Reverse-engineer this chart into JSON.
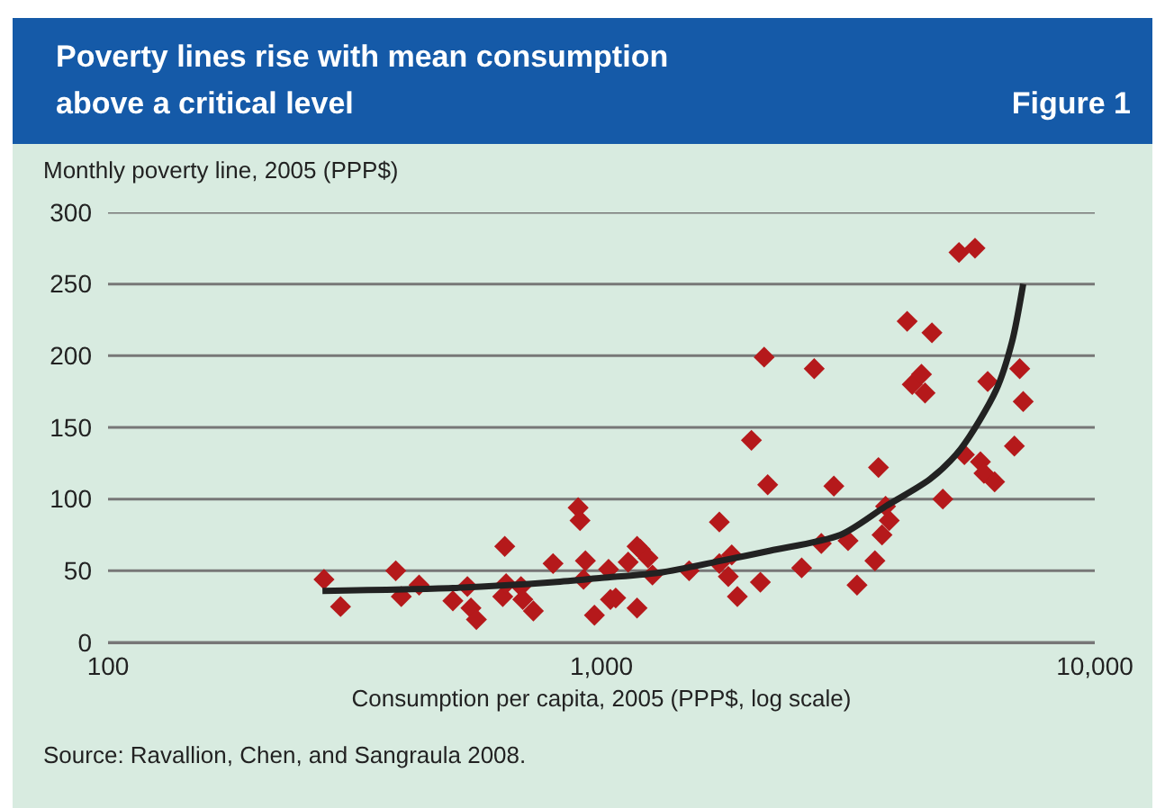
{
  "chart_data": {
    "type": "scatter",
    "title": "Poverty lines rise with mean consumption above a critical level",
    "subtitle": "Figure 1",
    "ylabel": "Monthly poverty line, 2005 (PPP$)",
    "xlabel": "Consumption per capita, 2005 (PPP$, log scale)",
    "annotations": [
      "Source: Ravallion, Chen, and Sangraula 2008."
    ],
    "log": "x",
    "xlim": [
      100,
      10000
    ],
    "xticks": [
      {
        "value": 100,
        "label": "100"
      },
      {
        "value": 1000,
        "label": "1,000"
      },
      {
        "value": 10000,
        "label": "10,000"
      }
    ],
    "ylim": [
      0,
      300
    ],
    "yticks": [
      0,
      50,
      100,
      150,
      200,
      250,
      300
    ],
    "grid": "y",
    "marker": "diamond",
    "series": [
      {
        "type": "scatter",
        "color": "#b5191b",
        "x": [
          274,
          296,
          383,
          393,
          427,
          500,
          535,
          544,
          558,
          631,
          637,
          641,
          687,
          693,
          728,
          798,
          897,
          905,
          928,
          920,
          968,
          1034,
          1043,
          1069,
          1133,
          1181,
          1199,
          1181,
          1243,
          1269,
          1506,
          1734,
          1734,
          1837,
          1808,
          1886,
          2014,
          2137,
          2173,
          2100,
          2546,
          2700,
          2791,
          2959,
          3162,
          3297,
          3584,
          3644,
          3705,
          3832,
          3767,
          4166,
          4266,
          4454,
          4529,
          4677,
          4921,
          5306,
          5718,
          5442,
          5865,
          5962,
          6266,
          6067,
          7045,
          7161,
          6871
        ],
        "values": [
          44,
          25,
          50,
          32,
          40,
          29,
          39,
          24,
          16,
          32,
          67,
          41,
          39,
          30,
          22,
          55,
          94,
          85,
          57,
          44,
          19,
          51,
          30,
          31,
          56,
          67,
          65,
          24,
          59,
          47,
          50,
          84,
          55,
          61,
          46,
          32,
          141,
          199,
          110,
          42,
          52,
          191,
          69,
          109,
          71,
          40,
          57,
          122,
          75,
          85,
          95,
          224,
          180,
          187,
          174,
          216,
          100,
          272,
          275,
          131,
          126,
          118,
          112,
          182,
          191,
          168,
          137
        ]
      },
      {
        "type": "line",
        "color": "#222222",
        "marker": "none",
        "line_style": "solid",
        "x": [
          272,
          500,
          800,
          1000,
          1330,
          1750,
          2200,
          3050,
          3770,
          4640,
          5350,
          6310,
          6800,
          7160
        ],
        "values": [
          36,
          38,
          42,
          45,
          49,
          57,
          64,
          75,
          95,
          114,
          135,
          176,
          210,
          250
        ]
      }
    ]
  }
}
